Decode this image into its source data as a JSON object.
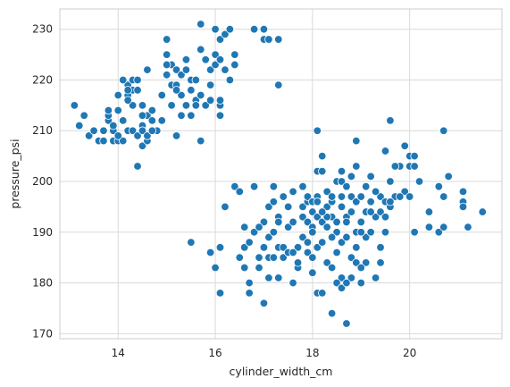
{
  "chart_data": {
    "type": "scatter",
    "title": "",
    "xlabel": "cylinder_width_cm",
    "ylabel": "pressure_psi",
    "xlim": [
      12.8,
      21.9
    ],
    "ylim": [
      169,
      234
    ],
    "xticks": [
      14,
      16,
      18,
      20
    ],
    "yticks": [
      170,
      180,
      190,
      200,
      210,
      220,
      230
    ],
    "grid": true,
    "colors": {
      "point": "#1f77b4",
      "point_edge": "#ffffff",
      "grid": "#d9d9d9",
      "frame": "#cccccc",
      "background": "#ffffff"
    },
    "series": [
      {
        "points": [
          [
            13.1,
            215
          ],
          [
            13.2,
            211
          ],
          [
            13.3,
            213
          ],
          [
            13.4,
            209
          ],
          [
            13.5,
            210
          ],
          [
            13.6,
            208
          ],
          [
            13.7,
            208
          ],
          [
            13.7,
            210
          ],
          [
            13.8,
            212
          ],
          [
            13.8,
            213
          ],
          [
            13.8,
            214
          ],
          [
            13.9,
            208
          ],
          [
            13.9,
            210
          ],
          [
            13.9,
            211
          ],
          [
            14.0,
            214
          ],
          [
            14.0,
            217
          ],
          [
            14.0,
            208
          ],
          [
            14.1,
            212
          ],
          [
            14.1,
            208
          ],
          [
            14.2,
            210
          ],
          [
            14.2,
            217
          ],
          [
            14.2,
            219
          ],
          [
            14.3,
            220
          ],
          [
            14.3,
            218
          ],
          [
            14.3,
            210
          ],
          [
            14.4,
            220
          ],
          [
            14.4,
            209
          ],
          [
            14.5,
            215
          ],
          [
            14.5,
            211
          ],
          [
            14.5,
            210
          ],
          [
            14.6,
            208
          ],
          [
            14.6,
            213
          ],
          [
            14.6,
            222
          ],
          [
            14.7,
            214
          ],
          [
            14.7,
            212
          ],
          [
            14.8,
            210
          ],
          [
            14.9,
            217
          ],
          [
            14.9,
            212
          ],
          [
            14.4,
            203
          ],
          [
            14.4,
            218
          ],
          [
            14.5,
            213
          ],
          [
            14.5,
            207
          ],
          [
            14.6,
            208
          ],
          [
            14.6,
            209
          ],
          [
            14.7,
            210
          ],
          [
            14.1,
            220
          ],
          [
            14.2,
            218
          ],
          [
            14.3,
            215
          ],
          [
            14.2,
            216
          ],
          [
            14.0,
            209
          ],
          [
            15.0,
            228
          ],
          [
            15.0,
            225
          ],
          [
            15.0,
            221
          ],
          [
            15.1,
            223
          ],
          [
            15.1,
            219
          ],
          [
            15.1,
            215
          ],
          [
            15.2,
            209
          ],
          [
            15.2,
            222
          ],
          [
            15.2,
            219
          ],
          [
            15.3,
            217
          ],
          [
            15.3,
            213
          ],
          [
            15.3,
            221
          ],
          [
            15.4,
            224
          ],
          [
            15.4,
            222
          ],
          [
            15.4,
            215
          ],
          [
            15.5,
            218
          ],
          [
            15.5,
            220
          ],
          [
            15.5,
            213
          ],
          [
            15.6,
            216
          ],
          [
            15.6,
            215
          ],
          [
            15.7,
            231
          ],
          [
            15.7,
            226
          ],
          [
            15.7,
            217
          ],
          [
            15.7,
            208
          ],
          [
            15.8,
            224
          ],
          [
            15.8,
            215
          ],
          [
            15.9,
            216
          ],
          [
            15.9,
            222
          ],
          [
            15.9,
            219
          ],
          [
            16.0,
            230
          ],
          [
            16.0,
            225
          ],
          [
            16.0,
            223
          ],
          [
            16.1,
            228
          ],
          [
            16.1,
            224
          ],
          [
            16.1,
            215
          ],
          [
            16.1,
            216
          ],
          [
            16.2,
            229
          ],
          [
            16.2,
            222
          ],
          [
            16.3,
            230
          ],
          [
            16.3,
            220
          ],
          [
            16.4,
            223
          ],
          [
            16.4,
            225
          ],
          [
            16.8,
            230
          ],
          [
            17.0,
            230
          ],
          [
            17.0,
            228
          ],
          [
            17.1,
            228
          ],
          [
            17.3,
            228
          ],
          [
            17.3,
            219
          ],
          [
            15.0,
            223
          ],
          [
            15.2,
            218
          ],
          [
            15.6,
            220
          ],
          [
            16.1,
            213
          ],
          [
            15.5,
            188
          ],
          [
            15.9,
            186
          ],
          [
            16.0,
            183
          ],
          [
            16.1,
            178
          ],
          [
            16.1,
            187
          ],
          [
            16.2,
            195
          ],
          [
            16.4,
            199
          ],
          [
            16.5,
            198
          ],
          [
            16.5,
            185
          ],
          [
            16.6,
            191
          ],
          [
            16.6,
            187
          ],
          [
            16.7,
            178
          ],
          [
            16.7,
            188
          ],
          [
            16.8,
            190
          ],
          [
            16.8,
            199
          ],
          [
            16.9,
            185
          ],
          [
            16.9,
            183
          ],
          [
            17.0,
            187
          ],
          [
            17.0,
            192
          ],
          [
            17.0,
            176
          ],
          [
            17.1,
            181
          ],
          [
            17.1,
            185
          ],
          [
            17.1,
            189
          ],
          [
            17.1,
            195
          ],
          [
            17.2,
            199
          ],
          [
            17.2,
            196
          ],
          [
            17.2,
            185
          ],
          [
            17.3,
            181
          ],
          [
            17.3,
            187
          ],
          [
            17.3,
            193
          ],
          [
            17.4,
            185
          ],
          [
            17.4,
            187
          ],
          [
            17.5,
            191
          ],
          [
            17.5,
            186
          ],
          [
            17.6,
            192
          ],
          [
            17.6,
            180
          ],
          [
            17.6,
            198
          ],
          [
            17.7,
            187
          ],
          [
            17.7,
            183
          ],
          [
            17.8,
            195
          ],
          [
            17.8,
            189
          ],
          [
            17.8,
            193
          ],
          [
            17.9,
            188
          ],
          [
            17.9,
            196
          ],
          [
            17.9,
            192
          ],
          [
            17.9,
            186
          ],
          [
            18.0,
            194
          ],
          [
            18.0,
            191
          ],
          [
            18.0,
            185
          ],
          [
            18.0,
            182
          ],
          [
            18.1,
            210
          ],
          [
            18.1,
            202
          ],
          [
            18.1,
            197
          ],
          [
            18.1,
            193
          ],
          [
            18.1,
            187
          ],
          [
            18.1,
            178
          ],
          [
            18.2,
            205
          ],
          [
            18.2,
            202
          ],
          [
            18.2,
            192
          ],
          [
            18.2,
            188
          ],
          [
            18.2,
            178
          ],
          [
            18.3,
            198
          ],
          [
            18.3,
            195
          ],
          [
            18.3,
            191
          ],
          [
            18.3,
            184
          ],
          [
            18.4,
            174
          ],
          [
            18.4,
            196
          ],
          [
            18.4,
            193
          ],
          [
            18.5,
            200
          ],
          [
            18.5,
            190
          ],
          [
            18.5,
            186
          ],
          [
            18.6,
            202
          ],
          [
            18.6,
            200
          ],
          [
            18.6,
            195
          ],
          [
            18.6,
            188
          ],
          [
            18.6,
            181
          ],
          [
            18.7,
            172
          ],
          [
            18.7,
            199
          ],
          [
            18.7,
            193
          ],
          [
            18.7,
            189
          ],
          [
            18.8,
            197
          ],
          [
            18.8,
            185
          ],
          [
            18.8,
            181
          ],
          [
            18.9,
            203
          ],
          [
            18.9,
            196
          ],
          [
            18.9,
            190
          ],
          [
            18.9,
            187
          ],
          [
            19.0,
            197
          ],
          [
            19.0,
            192
          ],
          [
            19.0,
            180
          ],
          [
            19.1,
            199
          ],
          [
            19.1,
            194
          ],
          [
            19.1,
            189
          ],
          [
            19.2,
            196
          ],
          [
            19.2,
            190
          ],
          [
            19.3,
            181
          ],
          [
            19.3,
            193
          ],
          [
            19.4,
            197
          ],
          [
            19.4,
            194
          ],
          [
            19.5,
            196
          ],
          [
            19.5,
            206
          ],
          [
            19.6,
            212
          ],
          [
            19.6,
            200
          ],
          [
            19.6,
            195
          ],
          [
            19.7,
            197
          ],
          [
            19.8,
            203
          ],
          [
            19.9,
            207
          ],
          [
            19.9,
            198
          ],
          [
            20.0,
            205
          ],
          [
            20.0,
            203
          ],
          [
            20.0,
            197
          ],
          [
            20.1,
            190
          ],
          [
            20.1,
            205
          ],
          [
            20.1,
            203
          ],
          [
            20.2,
            200
          ],
          [
            20.4,
            194
          ],
          [
            20.4,
            191
          ],
          [
            20.6,
            199
          ],
          [
            20.7,
            210
          ],
          [
            20.7,
            197
          ],
          [
            20.8,
            201
          ],
          [
            21.1,
            198
          ],
          [
            21.1,
            196
          ],
          [
            21.1,
            195
          ],
          [
            21.2,
            191
          ],
          [
            21.5,
            194
          ],
          [
            20.6,
            190
          ],
          [
            20.7,
            191
          ],
          [
            19.8,
            197
          ],
          [
            19.7,
            203
          ],
          [
            19.5,
            190
          ],
          [
            19.4,
            184
          ],
          [
            18.4,
            189
          ],
          [
            18.3,
            193
          ],
          [
            17.6,
            186
          ],
          [
            17.9,
            197
          ],
          [
            18.0,
            190
          ],
          [
            18.5,
            180
          ],
          [
            18.6,
            179
          ],
          [
            18.8,
            194
          ],
          [
            19.0,
            190
          ],
          [
            18.8,
            201
          ],
          [
            18.9,
            208
          ],
          [
            19.2,
            201
          ],
          [
            19.3,
            198
          ],
          [
            19.6,
            196
          ],
          [
            17.5,
            195
          ],
          [
            17.2,
            190
          ],
          [
            17.4,
            197
          ],
          [
            18.2,
            194
          ],
          [
            18.6,
            197
          ],
          [
            18.9,
            184
          ],
          [
            19.1,
            184
          ],
          [
            19.4,
            187
          ],
          [
            17.8,
            199
          ],
          [
            18.0,
            196
          ],
          [
            18.4,
            197
          ],
          [
            18.5,
            192
          ],
          [
            18.7,
            192
          ],
          [
            16.5,
            185
          ],
          [
            16.7,
            180
          ],
          [
            17.3,
            192
          ],
          [
            18.4,
            183
          ],
          [
            18.7,
            180
          ],
          [
            19.2,
            194
          ],
          [
            19.5,
            193
          ],
          [
            19.0,
            183
          ],
          [
            16.6,
            183
          ],
          [
            16.9,
            191
          ],
          [
            17.7,
            184
          ],
          [
            18.1,
            196
          ]
        ]
      }
    ]
  }
}
